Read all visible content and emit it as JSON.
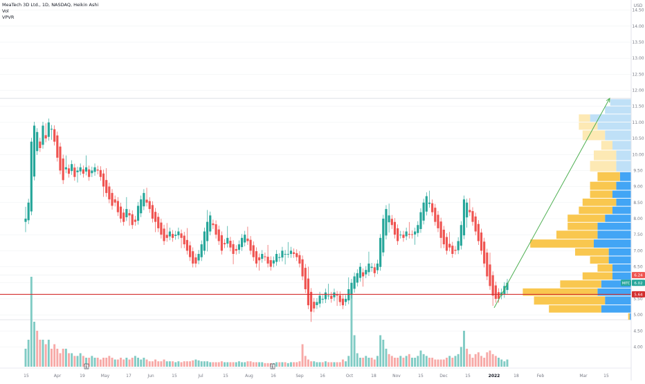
{
  "legend": {
    "title": "MeaTech 3D Ltd., 1D, NASDAQ, Heikin Ashi",
    "vol": "Vol",
    "vpvr": "VPVR"
  },
  "colors": {
    "up": "#26a69a",
    "down": "#ef5350",
    "support_line": "#d32f2f",
    "arrow": "#4caf50",
    "vp_up": "#f9c74f",
    "vp_down": "#42a5f5",
    "vp_up_light": "#fde9b4",
    "vp_down_light": "#bfe0f7",
    "grid": "#eceff2"
  },
  "chart_data": {
    "type": "candlestick",
    "price_axis": {
      "unit": "USD",
      "range": [
        3.6,
        14.6
      ],
      "ticks": [
        "14.50",
        "14.00",
        "13.50",
        "13.00",
        "12.50",
        "12.00",
        "11.50",
        "11.00",
        "10.50",
        "10.00",
        "9.50",
        "9.00",
        "8.50",
        "8.00",
        "7.50",
        "7.00",
        "6.50",
        "6.00",
        "5.50",
        "5.00",
        "4.50",
        "4.00"
      ]
    },
    "time_axis": {
      "labels": [
        "15",
        "Apr",
        "19",
        "May",
        "17",
        "Jun",
        "15",
        "Jul",
        "15",
        "Aug",
        "16",
        "Sep",
        "16",
        "Oct",
        "18",
        "Nov",
        "15",
        "Dec",
        "15",
        "2022",
        "18",
        "Feb",
        "Mar",
        "15"
      ]
    },
    "price_badges": [
      {
        "label": "6.24",
        "value": 6.24,
        "color": "#ef5350"
      },
      {
        "label": "MITC",
        "value": 6.02,
        "color": "#26a69a"
      },
      {
        "label": "6.02",
        "value": 6.02,
        "color": "#26a69a"
      },
      {
        "label": "5.64",
        "value": 5.64,
        "color": "#d32f2f"
      }
    ],
    "support_level": 5.64,
    "earnings_markers": [
      {
        "label": "E",
        "date_index": 60
      },
      {
        "label": "E",
        "date_index": 228
      }
    ],
    "projection_arrow": {
      "from_price": 5.22,
      "to_price": 11.75
    },
    "close_series": [
      8.0,
      8.5,
      10.4,
      10.9,
      10.7,
      10.2,
      10.9,
      10.5,
      11.0,
      10.8,
      10.4,
      9.9,
      9.5,
      9.2,
      9.6,
      9.4,
      9.7,
      9.3,
      9.5,
      9.6,
      9.4,
      9.6,
      9.3,
      9.5,
      9.6,
      9.5,
      9.3,
      9.0,
      8.8,
      8.6,
      8.4,
      8.5,
      8.2,
      8.0,
      7.9,
      8.3,
      8.1,
      7.8,
      7.9,
      8.4,
      8.6,
      8.8,
      8.5,
      8.3,
      8.0,
      7.9,
      7.7,
      7.5,
      7.3,
      7.4,
      7.6,
      7.4,
      7.5,
      7.6,
      7.4,
      7.2,
      7.0,
      6.8,
      6.6,
      6.6,
      6.9,
      7.2,
      7.6,
      7.9,
      8.1,
      7.8,
      7.5,
      7.3,
      7.0,
      7.2,
      7.4,
      7.1,
      6.9,
      7.0,
      7.2,
      7.4,
      7.5,
      7.3,
      7.0,
      6.8,
      6.6,
      6.7,
      6.9,
      6.8,
      6.6,
      6.5,
      6.7,
      6.9,
      6.8,
      7.0,
      6.9,
      6.9,
      7.0,
      6.9,
      6.8,
      6.6,
      6.2,
      5.8,
      5.3,
      5.1,
      5.2,
      5.4,
      5.6,
      5.5,
      5.7,
      5.6,
      5.5,
      5.7,
      5.6,
      5.4,
      5.3,
      5.5,
      5.8,
      6.0,
      6.2,
      6.3,
      6.5,
      6.2,
      6.4,
      6.6,
      6.5,
      6.3,
      6.6,
      7.4,
      8.0,
      8.3,
      8.1,
      7.8,
      7.5,
      7.3,
      7.5,
      7.4,
      7.6,
      7.5,
      7.5,
      7.6,
      7.8,
      8.2,
      8.5,
      8.7,
      8.5,
      8.2,
      7.9,
      7.7,
      7.4,
      7.2,
      7.0,
      7.1,
      6.9,
      7.0,
      7.3,
      7.8,
      8.6,
      8.5,
      8.2,
      7.9,
      7.6,
      7.3,
      7.0,
      6.6,
      6.2,
      5.9,
      5.6,
      5.5,
      5.5,
      5.7,
      5.9,
      6.0
    ],
    "volume_series": [
      0.2,
      0.3,
      1.0,
      0.5,
      0.4,
      0.3,
      0.3,
      0.25,
      0.3,
      0.2,
      0.25,
      0.2,
      0.15,
      0.2,
      0.2,
      0.15,
      0.15,
      0.12,
      0.12,
      0.15,
      0.12,
      0.1,
      0.1,
      0.12,
      0.1,
      0.1,
      0.08,
      0.1,
      0.1,
      0.12,
      0.1,
      0.08,
      0.08,
      0.1,
      0.08,
      0.1,
      0.08,
      0.1,
      0.12,
      0.1,
      0.08,
      0.1,
      0.08,
      0.06,
      0.06,
      0.08,
      0.06,
      0.06,
      0.08,
      0.06,
      0.06,
      0.06,
      0.05,
      0.06,
      0.05,
      0.06,
      0.06,
      0.06,
      0.07,
      0.08,
      0.07,
      0.06,
      0.06,
      0.06,
      0.05,
      0.05,
      0.05,
      0.05,
      0.06,
      0.05,
      0.05,
      0.05,
      0.05,
      0.05,
      0.06,
      0.05,
      0.05,
      0.06,
      0.06,
      0.05,
      0.05,
      0.05,
      0.05,
      0.04,
      0.04,
      0.04,
      0.04,
      0.05,
      0.05,
      0.05,
      0.05,
      0.04,
      0.05,
      0.05,
      0.05,
      0.06,
      0.25,
      0.12,
      0.08,
      0.06,
      0.06,
      0.05,
      0.05,
      0.05,
      0.06,
      0.05,
      0.05,
      0.05,
      0.05,
      0.05,
      0.08,
      0.06,
      0.12,
      0.9,
      0.35,
      0.15,
      0.1,
      0.1,
      0.12,
      0.1,
      0.1,
      0.08,
      0.12,
      0.35,
      0.3,
      0.2,
      0.14,
      0.12,
      0.1,
      0.1,
      0.12,
      0.1,
      0.12,
      0.14,
      0.1,
      0.1,
      0.12,
      0.18,
      0.14,
      0.12,
      0.1,
      0.1,
      0.08,
      0.08,
      0.08,
      0.08,
      0.1,
      0.12,
      0.1,
      0.12,
      0.14,
      0.22,
      0.4,
      0.2,
      0.14,
      0.1,
      0.14,
      0.16,
      0.12,
      0.1,
      0.16,
      0.18,
      0.14,
      0.12,
      0.1,
      0.08,
      0.06,
      0.08
    ],
    "volume_profile": [
      {
        "price": 11.6,
        "up": 0,
        "down": 0.28
      },
      {
        "price": 11.4,
        "up": 0,
        "down": 0.35
      },
      {
        "price": 11.1,
        "up": 0.15,
        "down": 0.55
      },
      {
        "price": 10.9,
        "up": 0.25,
        "down": 0.45
      },
      {
        "price": 10.6,
        "up": 0.3,
        "down": 0.35
      },
      {
        "price": 10.25,
        "up": 0.15,
        "down": 0.25
      },
      {
        "price": 10.0,
        "up": 0.3,
        "down": 0.2
      },
      {
        "price": 9.6,
        "up": 0.35,
        "down": 0.2
      },
      {
        "price": 9.3,
        "up": 0.3,
        "down": 0.15
      },
      {
        "price": 9.0,
        "up": 0.35,
        "down": 0.2
      },
      {
        "price": 8.75,
        "up": 0.3,
        "down": 0.25
      },
      {
        "price": 8.5,
        "up": 0.45,
        "down": 0.2
      },
      {
        "price": 8.25,
        "up": 0.45,
        "down": 0.25
      },
      {
        "price": 8.0,
        "up": 0.5,
        "down": 0.35
      },
      {
        "price": 7.75,
        "up": 0.4,
        "down": 0.45
      },
      {
        "price": 7.5,
        "up": 0.55,
        "down": 0.45
      },
      {
        "price": 7.2,
        "up": 0.85,
        "down": 0.5
      },
      {
        "price": 6.95,
        "up": 0.45,
        "down": 0.3
      },
      {
        "price": 6.7,
        "up": 0.25,
        "down": 0.3
      },
      {
        "price": 6.45,
        "up": 0.2,
        "down": 0.25
      },
      {
        "price": 6.2,
        "up": 0.4,
        "down": 0.25
      },
      {
        "price": 5.95,
        "up": 0.55,
        "down": 0.4
      },
      {
        "price": 5.7,
        "up": 1.0,
        "down": 0.45
      },
      {
        "price": 5.45,
        "up": 0.95,
        "down": 0.35
      },
      {
        "price": 5.15,
        "up": 0.7,
        "down": 0.4
      },
      {
        "price": 4.95,
        "up": 0.02,
        "down": 0.02
      }
    ]
  }
}
